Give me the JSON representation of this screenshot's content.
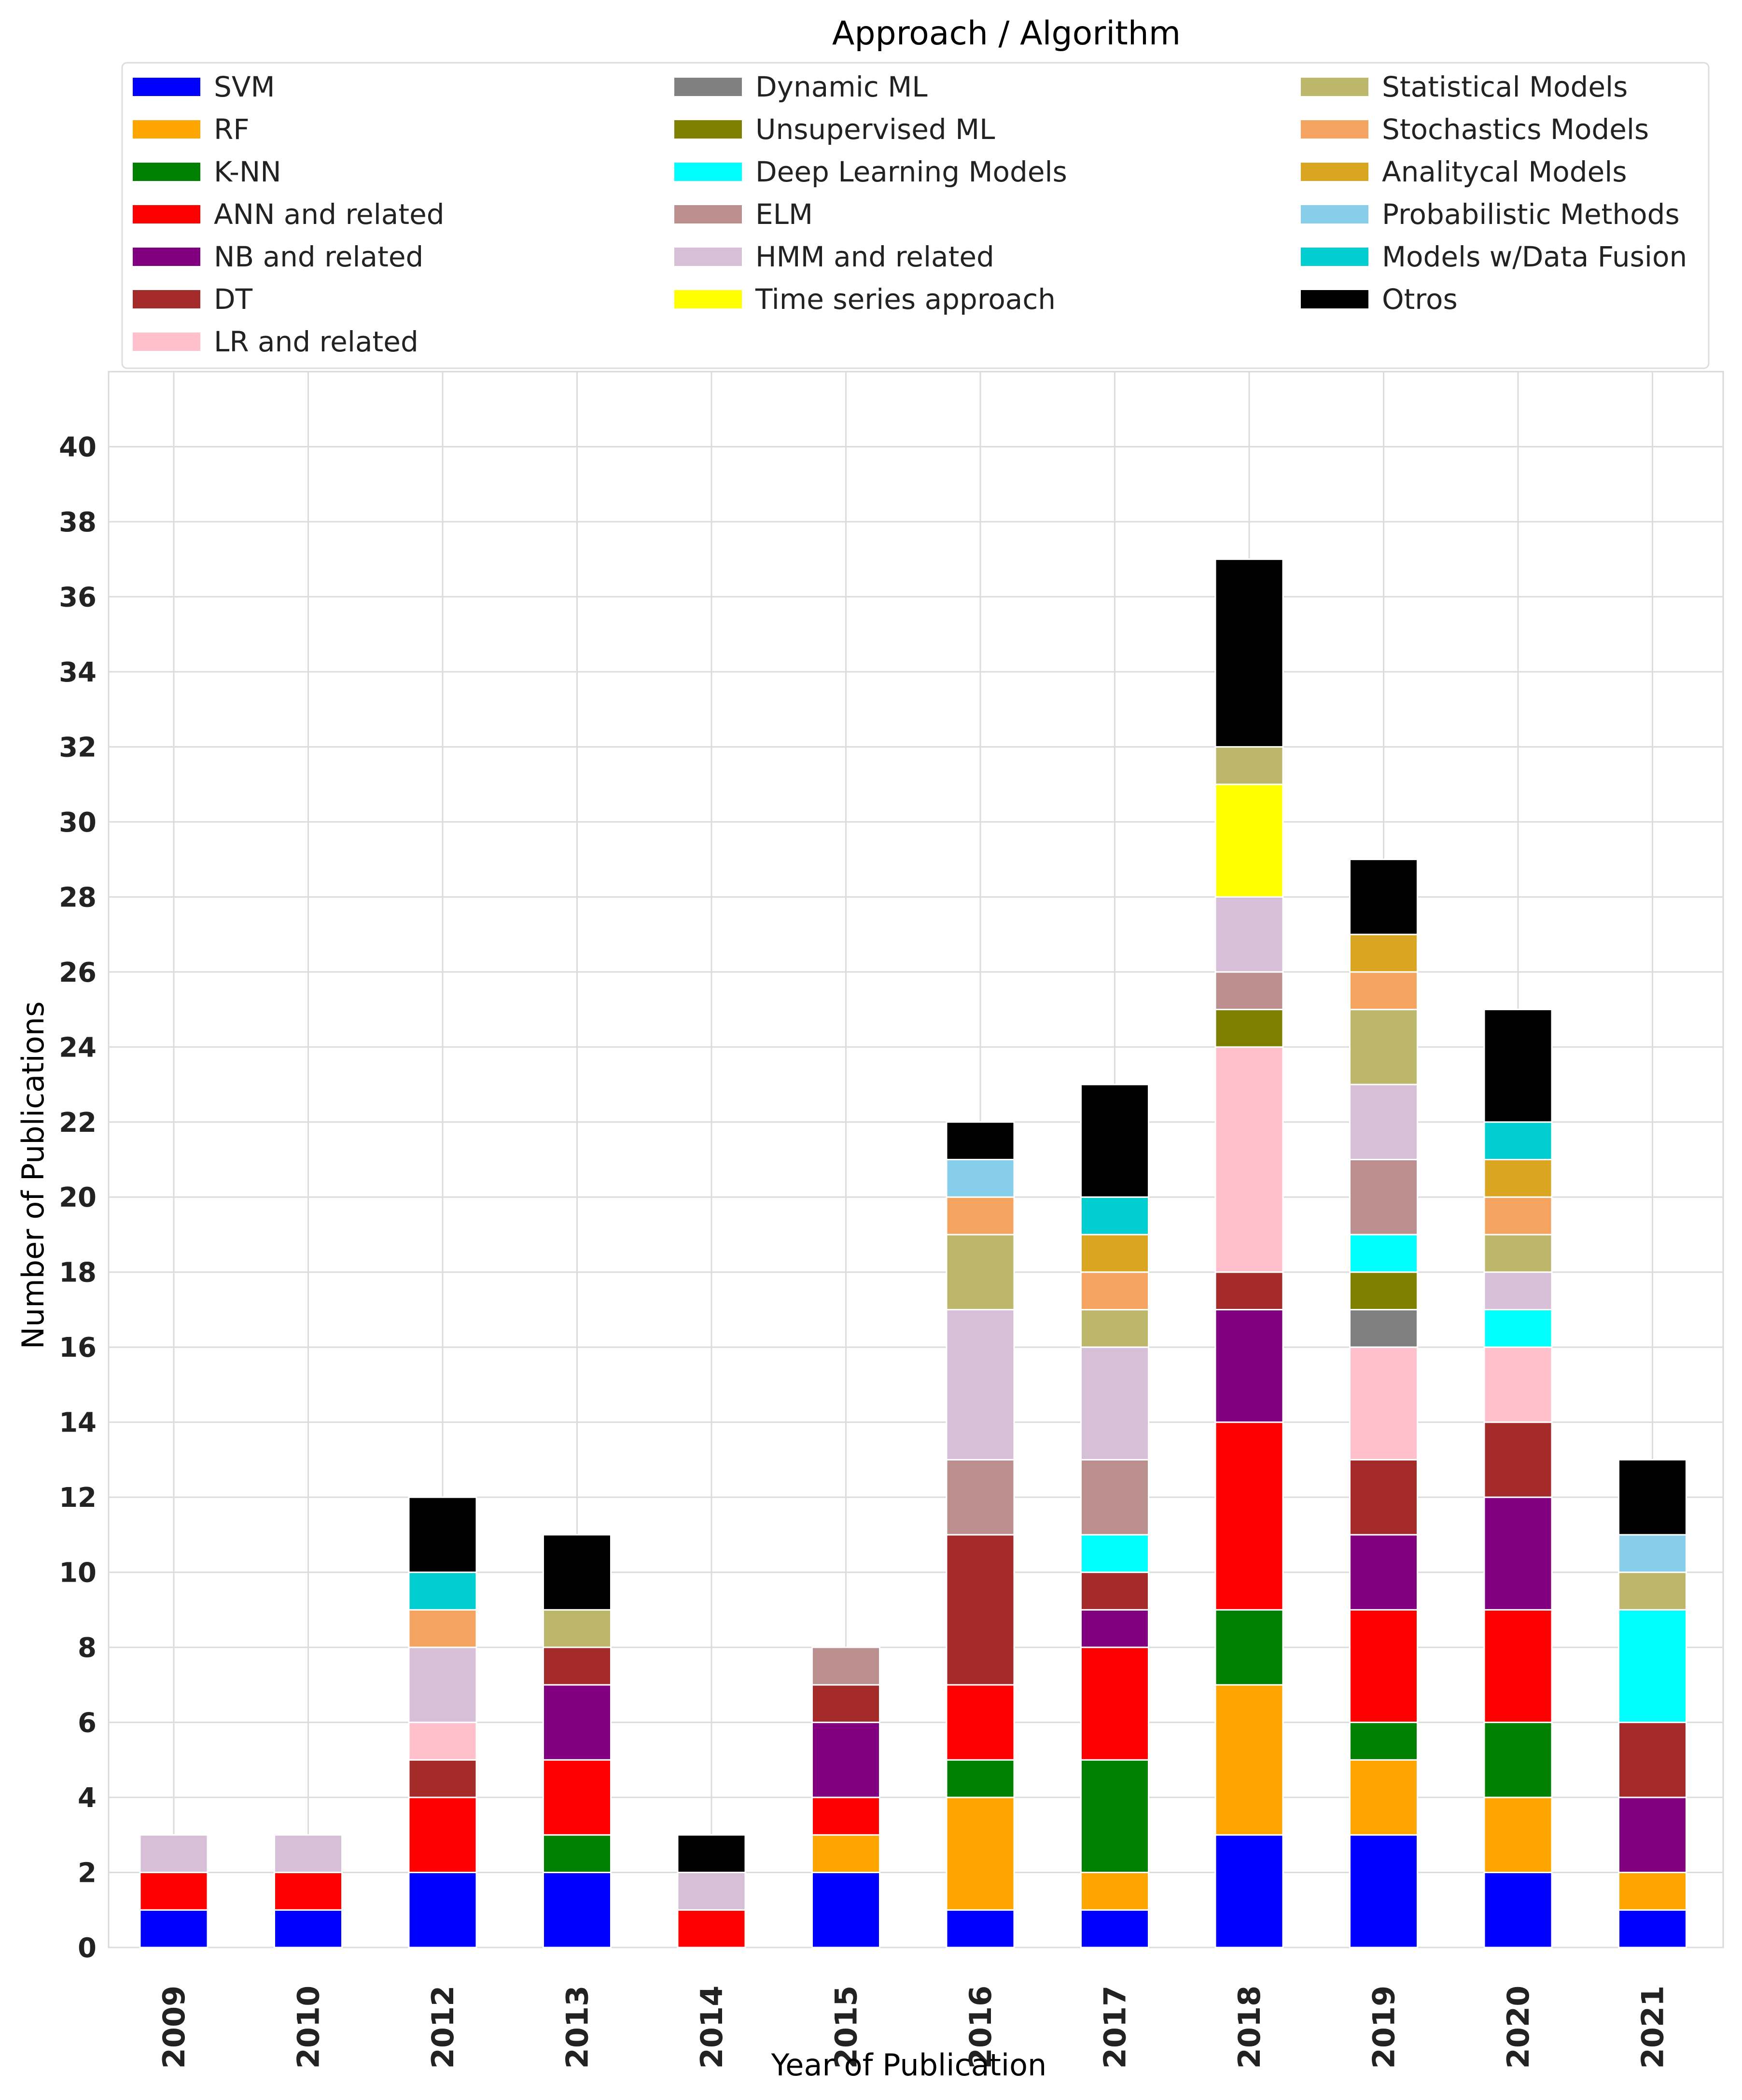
{
  "chart_data": {
    "type": "bar",
    "stacked": true,
    "title": "Approach / Algorithm",
    "xlabel": "Year of Publication",
    "ylabel": "Number of Publications",
    "ylim": [
      0,
      42
    ],
    "yticks": [
      0,
      2,
      4,
      6,
      8,
      10,
      12,
      14,
      16,
      18,
      20,
      22,
      24,
      26,
      28,
      30,
      32,
      34,
      36,
      38,
      40
    ],
    "grid": true,
    "legend_position": "top",
    "categories": [
      "2009",
      "2010",
      "2012",
      "2013",
      "2014",
      "2015",
      "2016",
      "2017",
      "2018",
      "2019",
      "2020",
      "2021"
    ],
    "series": [
      {
        "name": "SVM",
        "color": "#0000FF",
        "values": [
          1,
          1,
          2,
          2,
          0,
          2,
          1,
          1,
          3,
          3,
          2,
          1
        ]
      },
      {
        "name": "RF",
        "color": "#FFA500",
        "values": [
          0,
          0,
          0,
          0,
          0,
          1,
          3,
          1,
          4,
          2,
          2,
          1
        ]
      },
      {
        "name": "K-NN",
        "color": "#008000",
        "values": [
          0,
          0,
          0,
          1,
          0,
          0,
          1,
          3,
          2,
          1,
          2,
          0
        ]
      },
      {
        "name": "ANN and related",
        "color": "#FF0000",
        "values": [
          1,
          1,
          2,
          2,
          1,
          1,
          2,
          3,
          5,
          3,
          3,
          0
        ]
      },
      {
        "name": "NB and related",
        "color": "#800080",
        "values": [
          0,
          0,
          0,
          2,
          0,
          2,
          0,
          1,
          3,
          2,
          3,
          2
        ]
      },
      {
        "name": "DT",
        "color": "#A52A2A",
        "values": [
          0,
          0,
          1,
          1,
          0,
          1,
          4,
          1,
          1,
          2,
          2,
          2
        ]
      },
      {
        "name": "LR and related",
        "color": "#FFC0CB",
        "values": [
          0,
          0,
          1,
          0,
          0,
          0,
          0,
          0,
          6,
          3,
          2,
          0
        ]
      },
      {
        "name": "Dynamic ML",
        "color": "#808080",
        "values": [
          0,
          0,
          0,
          0,
          0,
          0,
          0,
          0,
          0,
          1,
          0,
          0
        ]
      },
      {
        "name": "Unsupervised ML",
        "color": "#808000",
        "values": [
          0,
          0,
          0,
          0,
          0,
          0,
          0,
          0,
          1,
          1,
          0,
          0
        ]
      },
      {
        "name": "Deep Learning Models",
        "color": "#00FFFF",
        "values": [
          0,
          0,
          0,
          0,
          0,
          0,
          0,
          1,
          0,
          1,
          1,
          3
        ]
      },
      {
        "name": "ELM",
        "color": "#BC8F8F",
        "values": [
          0,
          0,
          0,
          0,
          0,
          1,
          2,
          2,
          1,
          2,
          0,
          0
        ]
      },
      {
        "name": "HMM and related",
        "color": "#D8BFD8",
        "values": [
          1,
          1,
          2,
          0,
          1,
          0,
          4,
          3,
          2,
          2,
          1,
          0
        ]
      },
      {
        "name": "Time series approach",
        "color": "#FFFF00",
        "values": [
          0,
          0,
          0,
          0,
          0,
          0,
          0,
          0,
          3,
          0,
          0,
          0
        ]
      },
      {
        "name": "Statistical Models",
        "color": "#BDB76B",
        "values": [
          0,
          0,
          0,
          1,
          0,
          0,
          2,
          1,
          1,
          2,
          1,
          1
        ]
      },
      {
        "name": "Stochastics Models",
        "color": "#F4A460",
        "values": [
          0,
          0,
          1,
          0,
          0,
          0,
          1,
          1,
          0,
          1,
          1,
          0
        ]
      },
      {
        "name": "Analitycal Models",
        "color": "#DAA520",
        "values": [
          0,
          0,
          0,
          0,
          0,
          0,
          0,
          1,
          0,
          1,
          1,
          0
        ]
      },
      {
        "name": "Probabilistic Methods",
        "color": "#87CEEB",
        "values": [
          0,
          0,
          0,
          0,
          0,
          0,
          1,
          0,
          0,
          0,
          0,
          1
        ]
      },
      {
        "name": "Models w/Data Fusion",
        "color": "#00CED1",
        "values": [
          0,
          0,
          1,
          0,
          0,
          0,
          0,
          1,
          0,
          0,
          1,
          0
        ]
      },
      {
        "name": "Otros",
        "color": "#000000",
        "values": [
          0,
          0,
          2,
          2,
          1,
          0,
          1,
          3,
          5,
          2,
          3,
          2
        ]
      }
    ]
  }
}
